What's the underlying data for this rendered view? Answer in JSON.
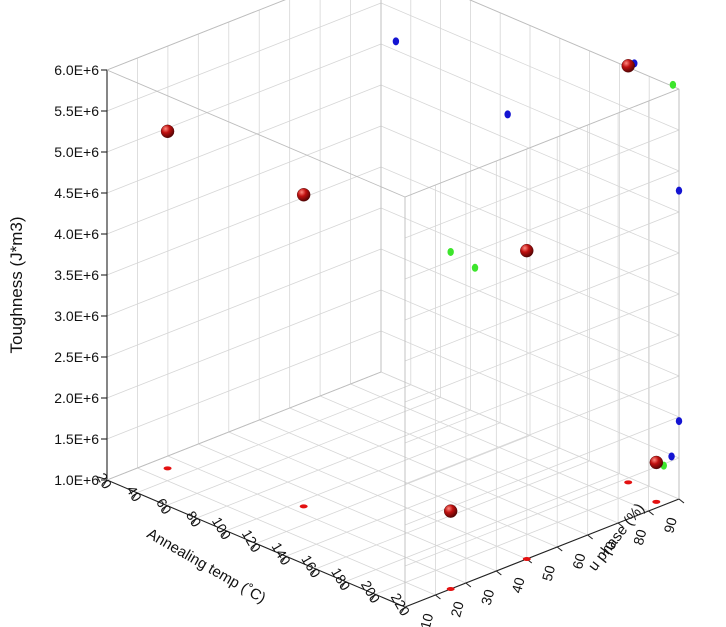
{
  "chart_data": {
    "type": "scatter",
    "title": "",
    "xlabel": "Annealing temp (˚C)",
    "ylabel": "u phase (%)",
    "zlabel": "Toughness (J*m3)",
    "xlim": [
      20,
      220
    ],
    "ylim": [
      0,
      90
    ],
    "zlim": [
      1000000,
      6000000
    ],
    "x_ticks": [
      "20",
      "40",
      "60",
      "80",
      "100",
      "120",
      "140",
      "160",
      "180",
      "200",
      "220"
    ],
    "y_ticks": [
      "10",
      "20",
      "30",
      "40",
      "50",
      "60",
      "70",
      "80",
      "90"
    ],
    "z_ticks": [
      "1.0E+6",
      "1.5E+6",
      "2.0E+6",
      "2.5E+6",
      "3.0E+6",
      "3.5E+6",
      "4.0E+6",
      "4.5E+6",
      "5.0E+6",
      "5.5E+6",
      "6.0E+6"
    ],
    "grid": true,
    "colors": {
      "main": "#c0100f",
      "xz_projection": "#1414d2",
      "yz_projection": "#3de52c",
      "xy_projection": "#e31111"
    },
    "points": [
      {
        "x": 30,
        "y": 15,
        "z": 5110000
      },
      {
        "x": 105,
        "y": 23,
        "z": 4800000
      },
      {
        "x": 190,
        "y": 88,
        "z": 6080000
      },
      {
        "x": 220,
        "y": 40,
        "z": 4760000
      },
      {
        "x": 220,
        "y": 15,
        "z": 1950000
      },
      {
        "x": 215,
        "y": 85,
        "z": 1480000
      }
    ]
  }
}
